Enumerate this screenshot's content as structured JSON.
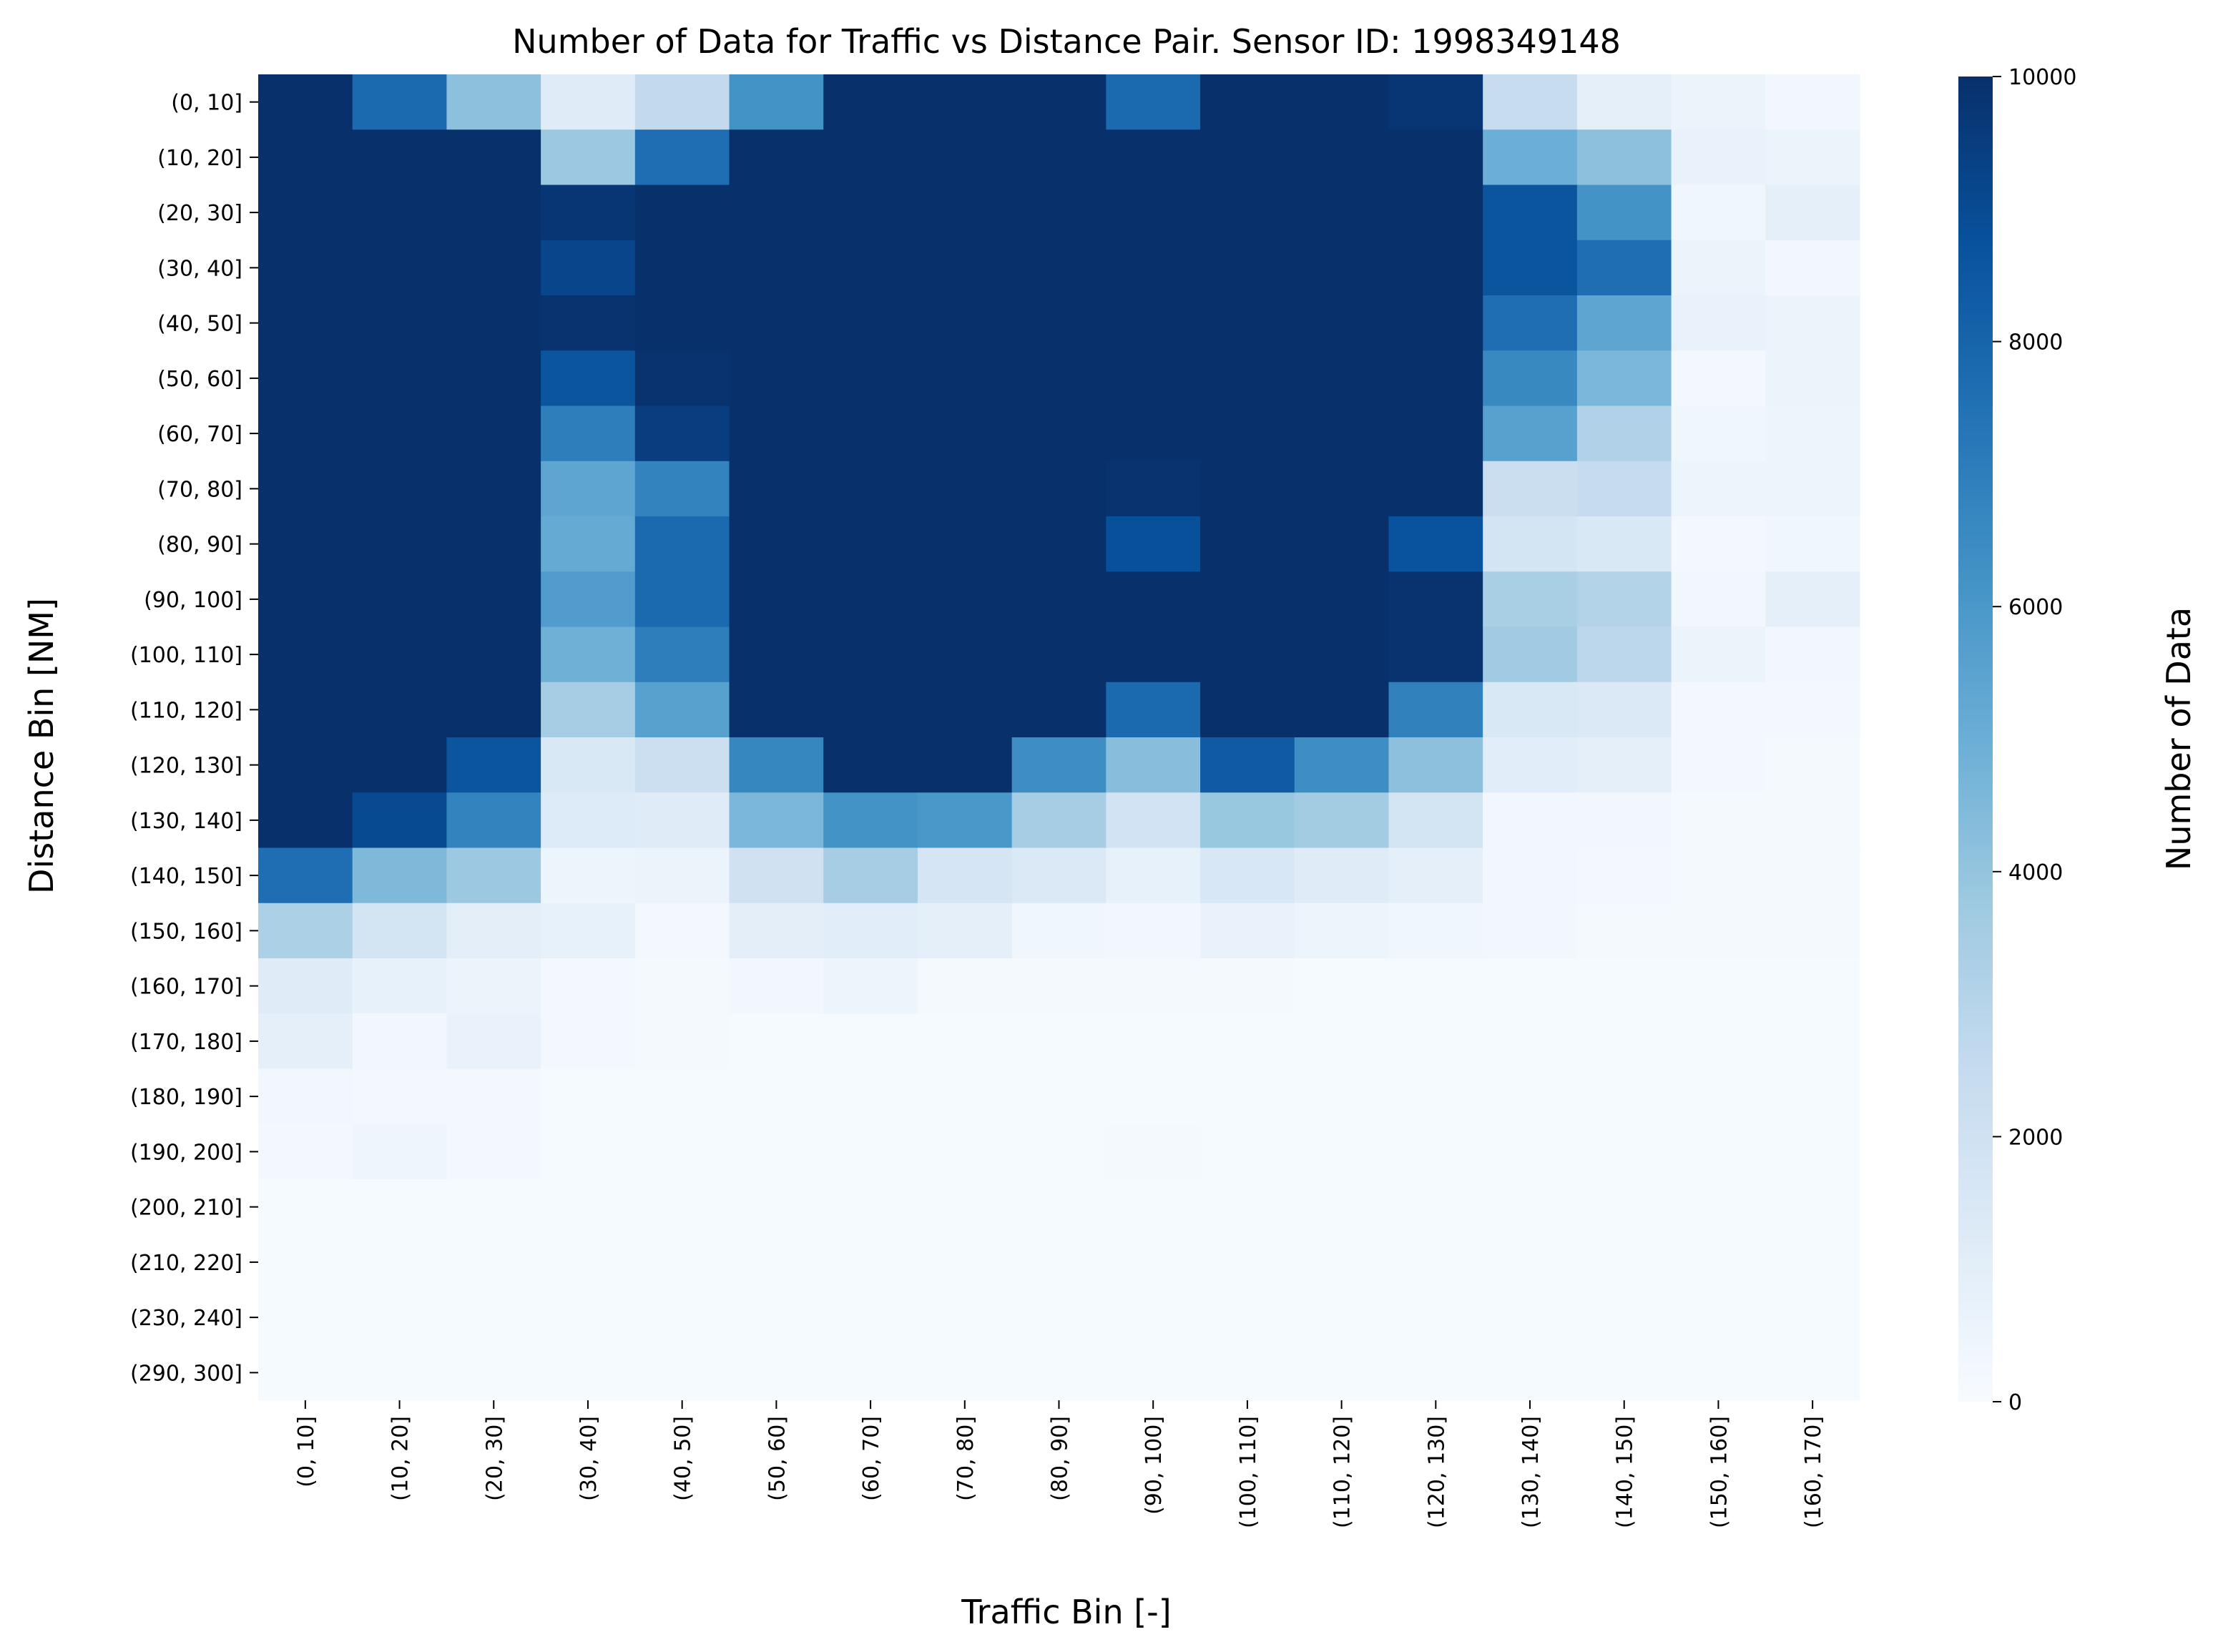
{
  "chart_data": {
    "type": "heatmap",
    "title": "Number of Data for Traffic vs Distance Pair. Sensor ID: 1998349148",
    "xlabel": "Traffic Bin [-]",
    "ylabel": "Distance Bin [NM]",
    "colorbar": {
      "label": "Number of Data",
      "range": [
        0,
        10000
      ],
      "ticks": [
        "0",
        "2000",
        "4000",
        "6000",
        "8000",
        "10000"
      ],
      "colormap": "Blues"
    },
    "x_categories": [
      "(0, 10]",
      "(10, 20]",
      "(20, 30]",
      "(30, 40]",
      "(40, 50]",
      "(50, 60]",
      "(60, 70]",
      "(70, 80]",
      "(80, 90]",
      "(90, 100]",
      "(100, 110]",
      "(110, 120]",
      "(120, 130]",
      "(130, 140]",
      "(140, 150]",
      "(150, 160]",
      "(160, 170]"
    ],
    "y_categories": [
      "(0, 10]",
      "(10, 20]",
      "(20, 30]",
      "(30, 40]",
      "(40, 50]",
      "(50, 60]",
      "(60, 70]",
      "(70, 80]",
      "(80, 90]",
      "(90, 100]",
      "(100, 110]",
      "(110, 120]",
      "(120, 130]",
      "(130, 140]",
      "(140, 150]",
      "(150, 160]",
      "(160, 170]",
      "(170, 180]",
      "(180, 190]",
      "(190, 200]",
      "(200, 210]",
      "(210, 220]",
      "(230, 240]",
      "(290, 300]"
    ],
    "values": [
      [
        10000,
        7800,
        4200,
        1200,
        2600,
        6200,
        10000,
        10000,
        10000,
        7800,
        10000,
        10000,
        9800,
        2400,
        900,
        600,
        300
      ],
      [
        10000,
        10000,
        10000,
        3800,
        7600,
        10000,
        10000,
        10000,
        10000,
        10000,
        10000,
        10000,
        10000,
        5000,
        4200,
        700,
        600
      ],
      [
        10000,
        10000,
        10000,
        9800,
        10000,
        10000,
        10000,
        10000,
        10000,
        10000,
        10000,
        10000,
        10000,
        8600,
        6200,
        400,
        900
      ],
      [
        10000,
        10000,
        10000,
        9200,
        10000,
        10000,
        10000,
        10000,
        10000,
        10000,
        10000,
        10000,
        10000,
        8600,
        7600,
        600,
        300
      ],
      [
        10000,
        10000,
        10000,
        9900,
        10000,
        10000,
        10000,
        10000,
        10000,
        10000,
        10000,
        10000,
        10000,
        7600,
        5400,
        700,
        600
      ],
      [
        10000,
        10000,
        10000,
        8600,
        9900,
        10000,
        10000,
        10000,
        10000,
        10000,
        10000,
        10000,
        10000,
        6600,
        4600,
        200,
        600
      ],
      [
        10000,
        10000,
        10000,
        7000,
        9500,
        10000,
        10000,
        10000,
        10000,
        10000,
        10000,
        10000,
        10000,
        5600,
        3200,
        400,
        500
      ],
      [
        10000,
        10000,
        10000,
        5400,
        6800,
        10000,
        10000,
        10000,
        10000,
        9900,
        10000,
        10000,
        10000,
        2300,
        2500,
        500,
        500
      ],
      [
        10000,
        10000,
        10000,
        5200,
        7800,
        10000,
        10000,
        10000,
        10000,
        8800,
        10000,
        10000,
        8700,
        1800,
        1500,
        200,
        400
      ],
      [
        10000,
        10000,
        10000,
        5800,
        7800,
        10000,
        10000,
        10000,
        10000,
        10000,
        10000,
        10000,
        9900,
        3400,
        3100,
        300,
        900
      ],
      [
        10000,
        10000,
        10000,
        4900,
        7000,
        10000,
        10000,
        10000,
        10000,
        10000,
        10000,
        10000,
        9900,
        3700,
        2800,
        600,
        300
      ],
      [
        10000,
        10000,
        10000,
        3500,
        5600,
        10000,
        10000,
        10000,
        10000,
        7800,
        10000,
        10000,
        6900,
        1500,
        1400,
        200,
        200
      ],
      [
        10000,
        10000,
        8600,
        1500,
        2200,
        6700,
        10000,
        10000,
        6400,
        4300,
        8400,
        6400,
        4200,
        1100,
        900,
        200,
        150
      ],
      [
        10000,
        9000,
        6800,
        1300,
        1200,
        4600,
        6200,
        6000,
        3500,
        1900,
        3900,
        3600,
        1800,
        300,
        300,
        150,
        150
      ],
      [
        7600,
        4500,
        3800,
        500,
        600,
        2000,
        3500,
        1700,
        1400,
        800,
        1600,
        1200,
        900,
        300,
        200,
        150,
        150
      ],
      [
        3300,
        1800,
        1000,
        800,
        200,
        1000,
        1100,
        900,
        400,
        300,
        700,
        500,
        400,
        300,
        150,
        150,
        150
      ],
      [
        1200,
        800,
        600,
        200,
        150,
        300,
        500,
        150,
        150,
        150,
        150,
        100,
        100,
        100,
        100,
        100,
        100
      ],
      [
        900,
        300,
        700,
        200,
        150,
        100,
        100,
        100,
        100,
        100,
        100,
        100,
        100,
        100,
        100,
        100,
        100
      ],
      [
        300,
        250,
        200,
        100,
        100,
        100,
        100,
        100,
        100,
        100,
        100,
        100,
        100,
        100,
        100,
        100,
        100
      ],
      [
        250,
        450,
        200,
        100,
        100,
        100,
        100,
        100,
        100,
        150,
        100,
        100,
        100,
        100,
        100,
        100,
        100
      ],
      [
        100,
        100,
        100,
        100,
        100,
        100,
        100,
        100,
        100,
        100,
        100,
        100,
        100,
        100,
        100,
        100,
        100
      ],
      [
        100,
        100,
        100,
        100,
        100,
        100,
        100,
        100,
        100,
        100,
        100,
        100,
        100,
        100,
        100,
        100,
        100
      ],
      [
        100,
        100,
        100,
        100,
        100,
        100,
        100,
        100,
        100,
        100,
        100,
        100,
        100,
        100,
        100,
        100,
        100
      ],
      [
        100,
        100,
        100,
        100,
        100,
        100,
        100,
        100,
        100,
        100,
        100,
        100,
        100,
        100,
        100,
        100,
        100
      ]
    ]
  }
}
